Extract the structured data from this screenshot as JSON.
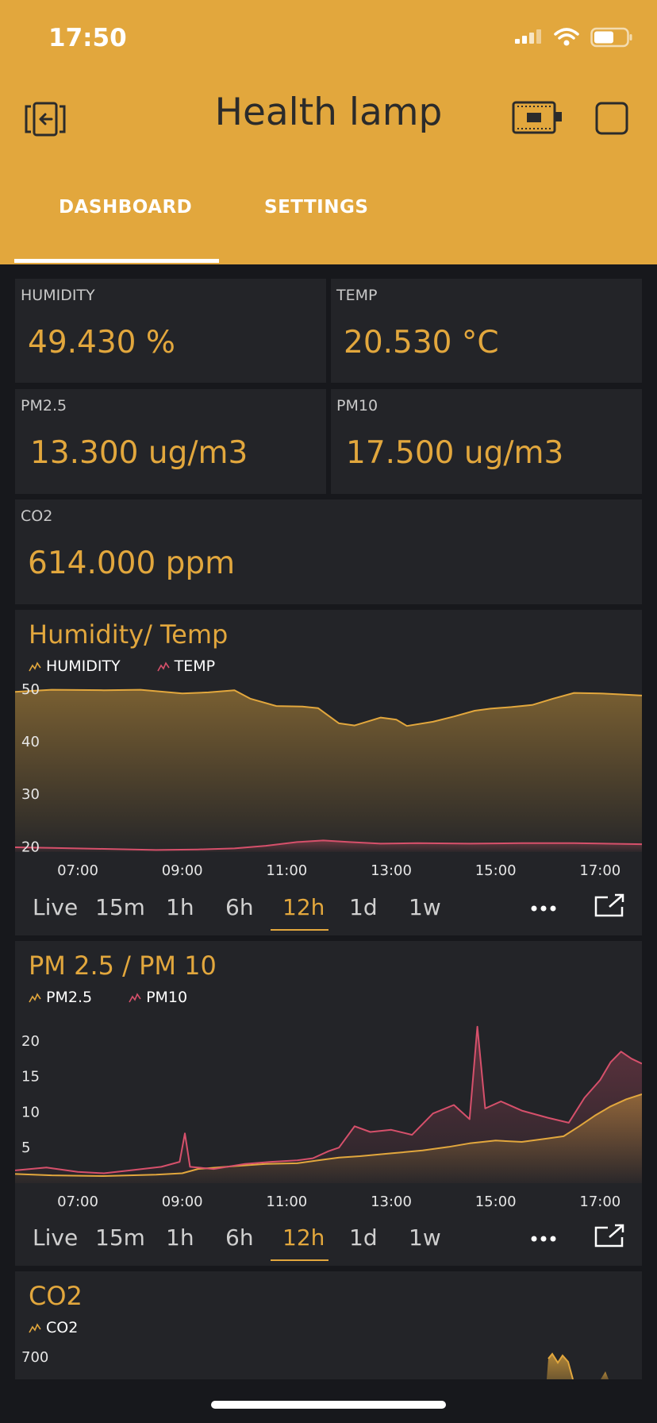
{
  "status_bar": {
    "time": "17:50"
  },
  "header": {
    "title": "Health lamp"
  },
  "tabs": [
    {
      "label": "DASHBOARD",
      "active": true
    },
    {
      "label": "SETTINGS",
      "active": false
    }
  ],
  "tiles": [
    {
      "label": "HUMIDITY",
      "value": "49.430 %"
    },
    {
      "label": "TEMP",
      "value": "20.530 °C"
    },
    {
      "label": "PM2.5",
      "value": "13.300 ug/m3"
    },
    {
      "label": "PM10",
      "value": "17.500 ug/m3"
    },
    {
      "label": "CO2",
      "value": "614.000 ppm"
    }
  ],
  "range_buttons": [
    "Live",
    "15m",
    "1h",
    "6h",
    "12h",
    "1d",
    "1w"
  ],
  "active_range": "12h",
  "colors": {
    "accent": "#E2A73D",
    "series2": "#D6506B",
    "card": "#232428",
    "background": "#17181c"
  },
  "chart_data": [
    {
      "type": "area",
      "title": "Humidity/ Temp",
      "x_ticks": [
        "07:00",
        "09:00",
        "11:00",
        "13:00",
        "15:00",
        "17:00"
      ],
      "y_ticks": [
        50,
        40,
        30,
        20
      ],
      "ylim": [
        19,
        51.5
      ],
      "xlim": [
        5.8,
        17.8
      ],
      "series": [
        {
          "name": "HUMIDITY",
          "color": "#E2A73D",
          "points": [
            [
              5.8,
              49.5
            ],
            [
              6.5,
              49.9
            ],
            [
              7.5,
              49.8
            ],
            [
              8.2,
              49.9
            ],
            [
              9.0,
              49.2
            ],
            [
              9.5,
              49.4
            ],
            [
              10.0,
              49.8
            ],
            [
              10.3,
              48.2
            ],
            [
              10.8,
              46.8
            ],
            [
              11.3,
              46.7
            ],
            [
              11.6,
              46.4
            ],
            [
              12.0,
              43.5
            ],
            [
              12.3,
              43.1
            ],
            [
              12.6,
              44.0
            ],
            [
              12.8,
              44.6
            ],
            [
              13.1,
              44.2
            ],
            [
              13.3,
              43.0
            ],
            [
              13.8,
              43.8
            ],
            [
              14.2,
              44.8
            ],
            [
              14.6,
              45.9
            ],
            [
              14.9,
              46.3
            ],
            [
              15.3,
              46.6
            ],
            [
              15.7,
              47.0
            ],
            [
              16.1,
              48.2
            ],
            [
              16.5,
              49.3
            ],
            [
              17.0,
              49.2
            ],
            [
              17.4,
              49.0
            ],
            [
              17.8,
              48.8
            ]
          ]
        },
        {
          "name": "TEMP",
          "color": "#D6506B",
          "points": [
            [
              5.8,
              19.9
            ],
            [
              6.5,
              19.8
            ],
            [
              7.5,
              19.6
            ],
            [
              8.5,
              19.4
            ],
            [
              9.3,
              19.5
            ],
            [
              10.0,
              19.7
            ],
            [
              10.6,
              20.2
            ],
            [
              11.2,
              20.9
            ],
            [
              11.7,
              21.2
            ],
            [
              12.2,
              20.9
            ],
            [
              12.8,
              20.6
            ],
            [
              13.5,
              20.7
            ],
            [
              14.5,
              20.6
            ],
            [
              15.5,
              20.7
            ],
            [
              16.5,
              20.7
            ],
            [
              17.8,
              20.5
            ]
          ]
        }
      ]
    },
    {
      "type": "area",
      "title": "PM 2.5 / PM 10",
      "x_ticks": [
        "07:00",
        "09:00",
        "11:00",
        "13:00",
        "15:00",
        "17:00"
      ],
      "y_ticks": [
        20,
        15,
        10,
        5
      ],
      "ylim": [
        0,
        24
      ],
      "xlim": [
        5.8,
        17.8
      ],
      "series": [
        {
          "name": "PM2.5",
          "color": "#E2A73D",
          "points": [
            [
              5.8,
              1.3
            ],
            [
              6.5,
              1.1
            ],
            [
              7.5,
              1.0
            ],
            [
              8.5,
              1.2
            ],
            [
              9.0,
              1.4
            ],
            [
              9.3,
              2.0
            ],
            [
              10.0,
              2.4
            ],
            [
              10.6,
              2.7
            ],
            [
              11.2,
              2.8
            ],
            [
              11.6,
              3.2
            ],
            [
              12.0,
              3.6
            ],
            [
              12.4,
              3.8
            ],
            [
              13.0,
              4.2
            ],
            [
              13.6,
              4.6
            ],
            [
              14.1,
              5.1
            ],
            [
              14.5,
              5.6
            ],
            [
              15.0,
              6.0
            ],
            [
              15.5,
              5.8
            ],
            [
              16.0,
              6.3
            ],
            [
              16.3,
              6.6
            ],
            [
              16.6,
              8.0
            ],
            [
              16.9,
              9.5
            ],
            [
              17.2,
              10.8
            ],
            [
              17.5,
              11.8
            ],
            [
              17.8,
              12.5
            ]
          ]
        },
        {
          "name": "PM10",
          "color": "#D6506B",
          "points": [
            [
              5.8,
              1.8
            ],
            [
              6.4,
              2.2
            ],
            [
              7.0,
              1.6
            ],
            [
              7.5,
              1.4
            ],
            [
              8.0,
              1.8
            ],
            [
              8.6,
              2.3
            ],
            [
              8.95,
              3.0
            ],
            [
              9.05,
              7.0
            ],
            [
              9.15,
              2.3
            ],
            [
              9.6,
              2.0
            ],
            [
              10.2,
              2.7
            ],
            [
              10.7,
              3.0
            ],
            [
              11.2,
              3.2
            ],
            [
              11.5,
              3.5
            ],
            [
              11.8,
              4.5
            ],
            [
              12.0,
              5.0
            ],
            [
              12.3,
              8.0
            ],
            [
              12.6,
              7.2
            ],
            [
              13.0,
              7.5
            ],
            [
              13.4,
              6.8
            ],
            [
              13.8,
              9.8
            ],
            [
              14.2,
              11.0
            ],
            [
              14.5,
              9.0
            ],
            [
              14.65,
              22.0
            ],
            [
              14.8,
              10.5
            ],
            [
              15.1,
              11.5
            ],
            [
              15.5,
              10.2
            ],
            [
              16.0,
              9.2
            ],
            [
              16.4,
              8.5
            ],
            [
              16.7,
              12.0
            ],
            [
              17.0,
              14.5
            ],
            [
              17.2,
              17.0
            ],
            [
              17.4,
              18.5
            ],
            [
              17.6,
              17.5
            ],
            [
              17.8,
              16.8
            ]
          ]
        }
      ]
    },
    {
      "type": "area",
      "title": "CO2",
      "y_ticks": [
        700
      ],
      "series": [
        {
          "name": "CO2",
          "color": "#E2A73D"
        }
      ]
    }
  ]
}
